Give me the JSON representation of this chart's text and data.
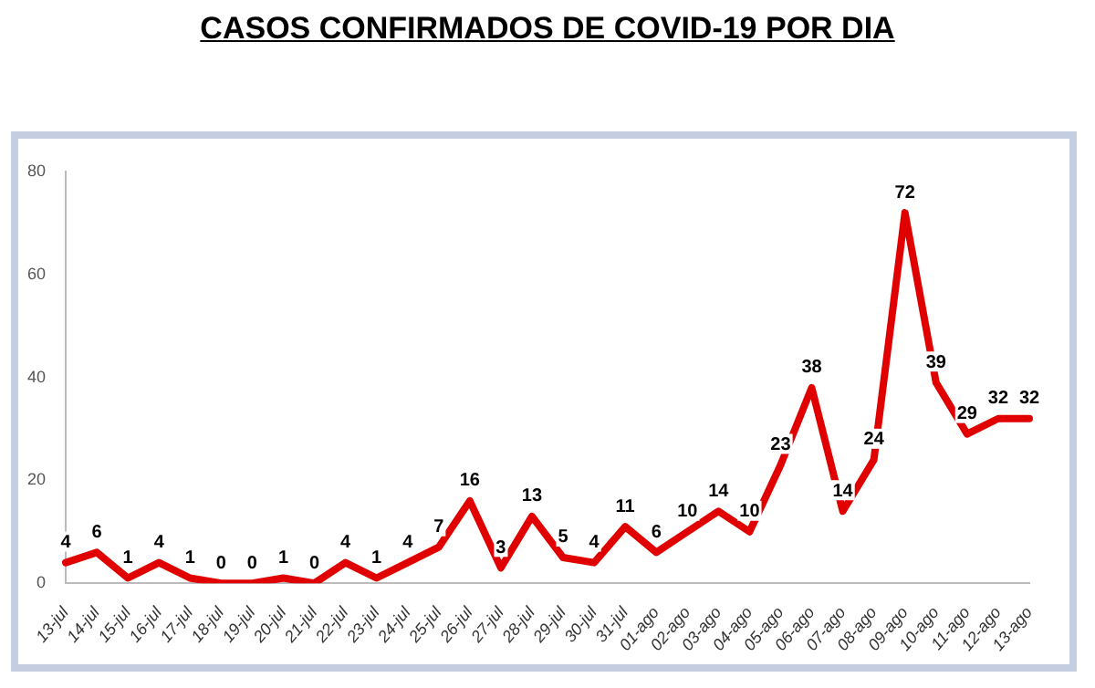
{
  "chart_data": {
    "type": "line",
    "title": "CASOS CONFIRMADOS DE COVID-19 POR DIA",
    "categories": [
      "13-jul",
      "14-jul",
      "15-jul",
      "16-jul",
      "17-jul",
      "18-jul",
      "19-jul",
      "20-jul",
      "21-jul",
      "22-jul",
      "23-jul",
      "24-jul",
      "25-jul",
      "26-jul",
      "27-jul",
      "28-jul",
      "29-jul",
      "30-jul",
      "31-jul",
      "01-ago",
      "02-ago",
      "03-ago",
      "04-ago",
      "05-ago",
      "06-ago",
      "07-ago",
      "08-ago",
      "09-ago",
      "10-ago",
      "11-ago",
      "12-ago",
      "13-ago"
    ],
    "series": [
      {
        "color": "#e00000",
        "values": [
          4,
          6,
          1,
          4,
          1,
          0,
          0,
          1,
          0,
          4,
          1,
          4,
          7,
          16,
          3,
          13,
          5,
          4,
          11,
          6,
          10,
          14,
          10,
          23,
          38,
          14,
          24,
          72,
          39,
          29,
          32,
          32
        ]
      }
    ],
    "ylim": [
      0,
      80
    ],
    "yticks": [
      0,
      20,
      40,
      60,
      80
    ],
    "grid": false,
    "legend": false,
    "marker": "none",
    "line_style": "solid",
    "data_labels": true
  }
}
